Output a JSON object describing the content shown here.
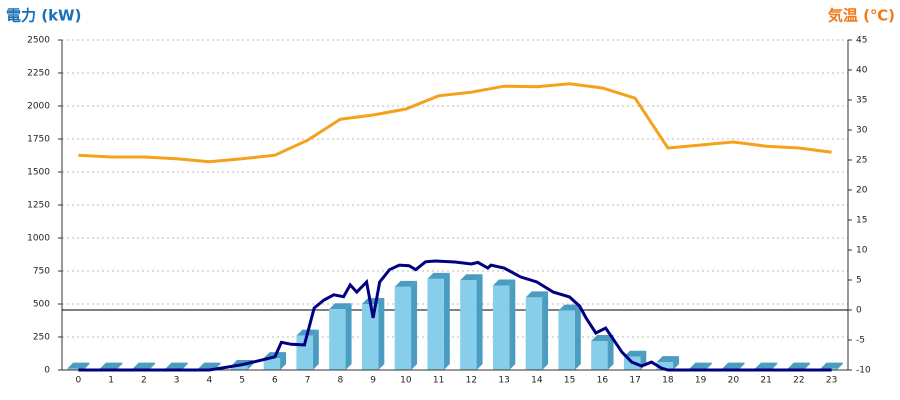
{
  "chart_data": {
    "type": "bar",
    "y_title": "電力 (kW)",
    "y2_title": "気温 (℃)",
    "categories": [
      "0",
      "1",
      "2",
      "3",
      "4",
      "5",
      "6",
      "7",
      "8",
      "9",
      "10",
      "11",
      "12",
      "13",
      "14",
      "15",
      "16",
      "17",
      "18",
      "19",
      "20",
      "21",
      "22",
      "23"
    ],
    "values": [
      10,
      10,
      10,
      10,
      10,
      30,
      90,
      260,
      460,
      500,
      630,
      690,
      680,
      640,
      550,
      450,
      220,
      100,
      60,
      10,
      10,
      10,
      10,
      10
    ],
    "color": "#87ceeb",
    "side_color": "#4a9cc0",
    "ylim": [
      0,
      2500
    ],
    "yticks": [
      0,
      250,
      500,
      750,
      1000,
      1250,
      1500,
      1750,
      2000,
      2250,
      2500
    ],
    "y2lim": [
      -10,
      45
    ],
    "y2ticks": [
      -10,
      -5,
      0,
      5,
      10,
      15,
      20,
      25,
      30,
      35,
      40,
      45
    ],
    "y2_reference": 0,
    "grid": true,
    "lines": [
      {
        "type": "line",
        "color": "#000080",
        "x": [
          0,
          4,
          4.5,
          5,
          5.5,
          6,
          6.2,
          6.5,
          6.9,
          7.2,
          7.5,
          7.8,
          8.1,
          8.3,
          8.5,
          8.8,
          9,
          9.2,
          9.5,
          9.8,
          10.1,
          10.3,
          10.6,
          10.9,
          11.5,
          12,
          12.2,
          12.5,
          12.6,
          13,
          13.5,
          14,
          14.5,
          15,
          15.3,
          15.5,
          15.8,
          16.1,
          16.3,
          16.6,
          16.9,
          17.2,
          17.5,
          17.8,
          18,
          23
        ],
        "values": [
          0,
          0,
          20,
          40,
          70,
          100,
          210,
          195,
          190,
          470,
          530,
          570,
          555,
          645,
          590,
          667,
          395,
          667,
          760,
          795,
          790,
          760,
          820,
          826,
          818,
          803,
          815,
          773,
          795,
          773,
          705,
          667,
          590,
          553,
          485,
          395,
          280,
          318,
          245,
          135,
          60,
          30,
          60,
          15,
          0,
          0
        ]
      },
      {
        "type": "line",
        "axis": "y2",
        "color": "#f5a11c",
        "x": [
          0,
          1,
          2,
          3,
          4,
          5,
          6,
          7,
          8,
          9,
          10,
          11,
          12,
          13,
          14,
          15,
          16,
          17,
          18,
          19,
          20,
          21,
          22,
          23
        ],
        "values": [
          25.8,
          25.5,
          25.5,
          25.2,
          24.7,
          25.2,
          25.8,
          28.3,
          31.8,
          32.5,
          33.5,
          35.7,
          36.3,
          37.3,
          37.2,
          37.7,
          37,
          35.3,
          27,
          27.5,
          28,
          27.3,
          27,
          26.3
        ]
      }
    ]
  }
}
